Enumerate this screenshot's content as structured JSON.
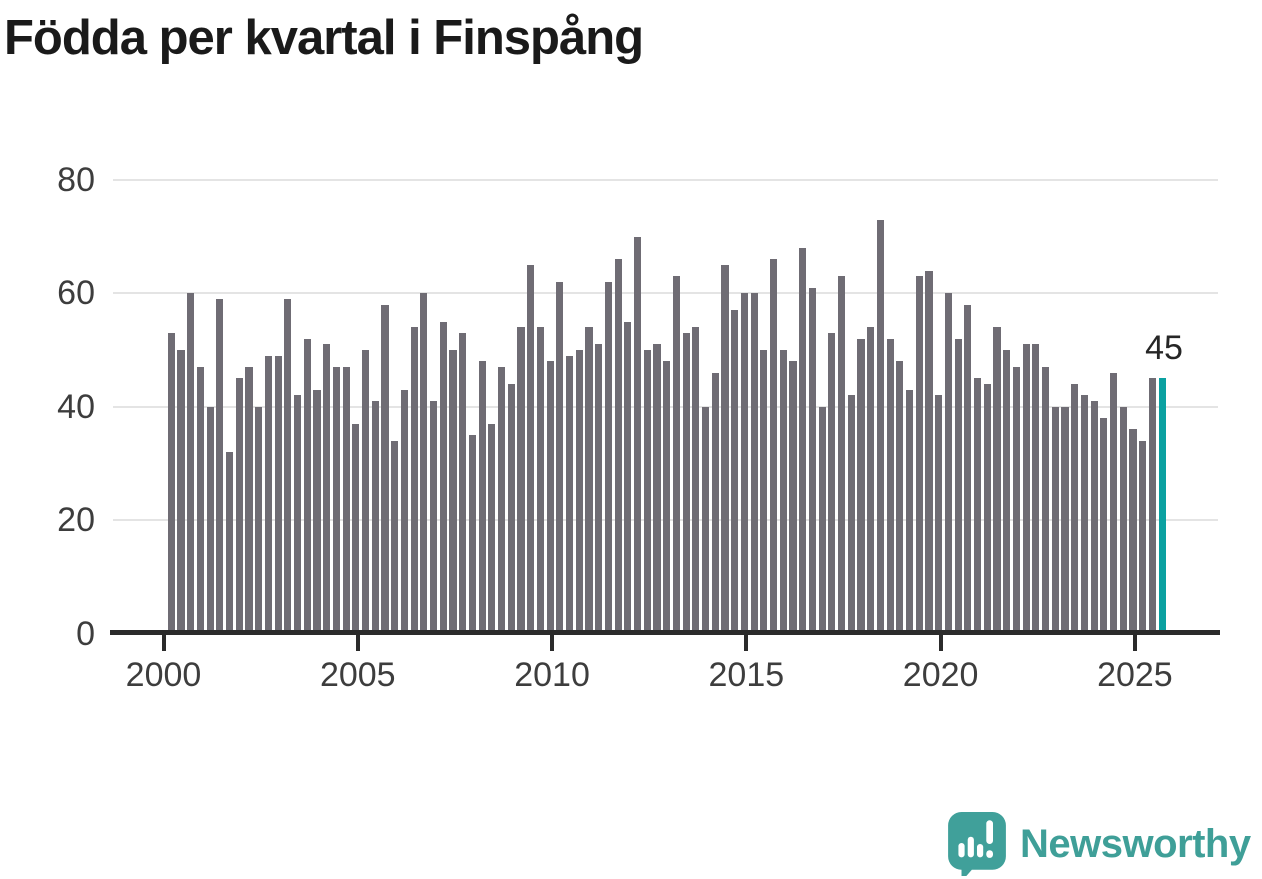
{
  "title": "Födda per kvartal i Finspång",
  "annotation": {
    "value_label": "45"
  },
  "branding": {
    "name": "Newsworthy",
    "icon": "speech-bubble-bar-chart-exclamation"
  },
  "colors": {
    "bar": "#6f6c74",
    "highlight_bar": "#0ba1a1",
    "axis": "#2b2b2b",
    "gridline": "#e4e4e4",
    "title_text": "#1a1a1a",
    "tick_label": "#3d3d3d",
    "logo": "#40a09a"
  },
  "chart_data": {
    "type": "bar",
    "title": "Födda per kvartal i Finspång",
    "xlabel": "",
    "ylabel": "",
    "ylim": [
      0,
      80
    ],
    "y_ticks": [
      0,
      20,
      40,
      60,
      80
    ],
    "x_ticks": [
      "2000",
      "2005",
      "2010",
      "2015",
      "2020",
      "2025"
    ],
    "grid": "horizontal",
    "legend": "none",
    "unit": "births per quarter",
    "years": [
      {
        "year": 2000,
        "values": [
          53,
          50,
          60,
          47
        ]
      },
      {
        "year": 2001,
        "values": [
          40,
          59,
          32,
          45
        ]
      },
      {
        "year": 2002,
        "values": [
          47,
          40,
          49,
          49
        ]
      },
      {
        "year": 2003,
        "values": [
          59,
          42,
          52,
          43
        ]
      },
      {
        "year": 2004,
        "values": [
          51,
          47,
          47,
          37
        ]
      },
      {
        "year": 2005,
        "values": [
          50,
          41,
          58,
          34
        ]
      },
      {
        "year": 2006,
        "values": [
          43,
          54,
          60,
          41
        ]
      },
      {
        "year": 2007,
        "values": [
          55,
          50,
          53,
          35
        ]
      },
      {
        "year": 2008,
        "values": [
          48,
          37,
          47,
          44
        ]
      },
      {
        "year": 2009,
        "values": [
          54,
          65,
          54,
          48
        ]
      },
      {
        "year": 2010,
        "values": [
          62,
          49,
          50,
          54
        ]
      },
      {
        "year": 2011,
        "values": [
          51,
          62,
          66,
          55
        ]
      },
      {
        "year": 2012,
        "values": [
          70,
          50,
          51,
          48
        ]
      },
      {
        "year": 2013,
        "values": [
          63,
          53,
          54,
          40
        ]
      },
      {
        "year": 2014,
        "values": [
          46,
          65,
          57,
          60
        ]
      },
      {
        "year": 2015,
        "values": [
          60,
          50,
          66,
          50
        ]
      },
      {
        "year": 2016,
        "values": [
          48,
          68,
          61,
          40
        ]
      },
      {
        "year": 2017,
        "values": [
          53,
          63,
          42,
          52
        ]
      },
      {
        "year": 2018,
        "values": [
          54,
          73,
          52,
          48
        ]
      },
      {
        "year": 2019,
        "values": [
          43,
          63,
          64,
          42
        ]
      },
      {
        "year": 2020,
        "values": [
          60,
          52,
          58,
          45
        ]
      },
      {
        "year": 2021,
        "values": [
          44,
          54,
          50,
          47
        ]
      },
      {
        "year": 2022,
        "values": [
          51,
          51,
          47,
          40
        ]
      },
      {
        "year": 2023,
        "values": [
          40,
          44,
          42,
          41
        ]
      },
      {
        "year": 2024,
        "values": [
          38,
          46,
          40,
          36
        ]
      },
      {
        "year": 2025,
        "values": [
          34,
          45,
          45
        ]
      }
    ],
    "highlight": {
      "period": "2025 Q3",
      "value": 45
    }
  }
}
